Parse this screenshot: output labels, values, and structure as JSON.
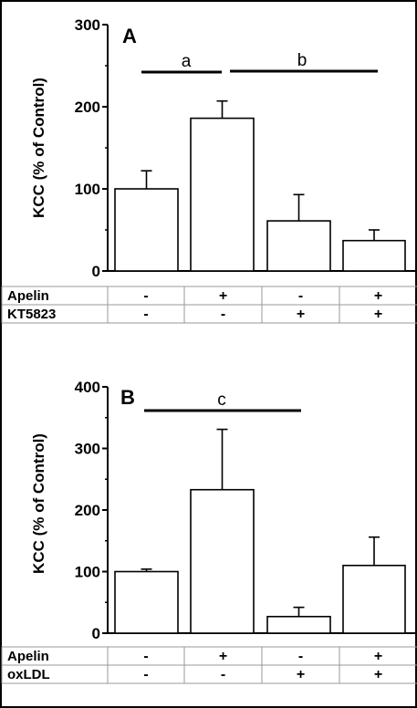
{
  "chart_data": [
    {
      "panel": "A",
      "type": "bar",
      "ylabel": "KCC  (% of Control)",
      "ylim": [
        0,
        300
      ],
      "yticks": [
        0,
        100,
        200,
        300
      ],
      "values": [
        100,
        186,
        61,
        37
      ],
      "errors": [
        22,
        21,
        32,
        13
      ],
      "significance": [
        {
          "label": "a",
          "from": 0,
          "to": 1
        },
        {
          "label": "b",
          "from": 1,
          "to": 3
        }
      ],
      "table": [
        {
          "label": "Apelin",
          "values": [
            "-",
            "+",
            "-",
            "+"
          ]
        },
        {
          "label": "KT5823",
          "values": [
            "-",
            "-",
            "+",
            "+"
          ]
        }
      ]
    },
    {
      "panel": "B",
      "type": "bar",
      "ylabel": "KCC (% of Control)",
      "ylim": [
        0,
        400
      ],
      "yticks": [
        0,
        100,
        200,
        300,
        400
      ],
      "values": [
        100,
        233,
        27,
        110
      ],
      "errors": [
        4,
        98,
        15,
        46
      ],
      "significance": [
        {
          "label": "c",
          "from": 0,
          "to": 2
        }
      ],
      "table": [
        {
          "label": "Apelin",
          "values": [
            "-",
            "+",
            "-",
            "+"
          ]
        },
        {
          "label": "oxLDL",
          "values": [
            "-",
            "-",
            "+",
            "+"
          ]
        }
      ]
    }
  ]
}
